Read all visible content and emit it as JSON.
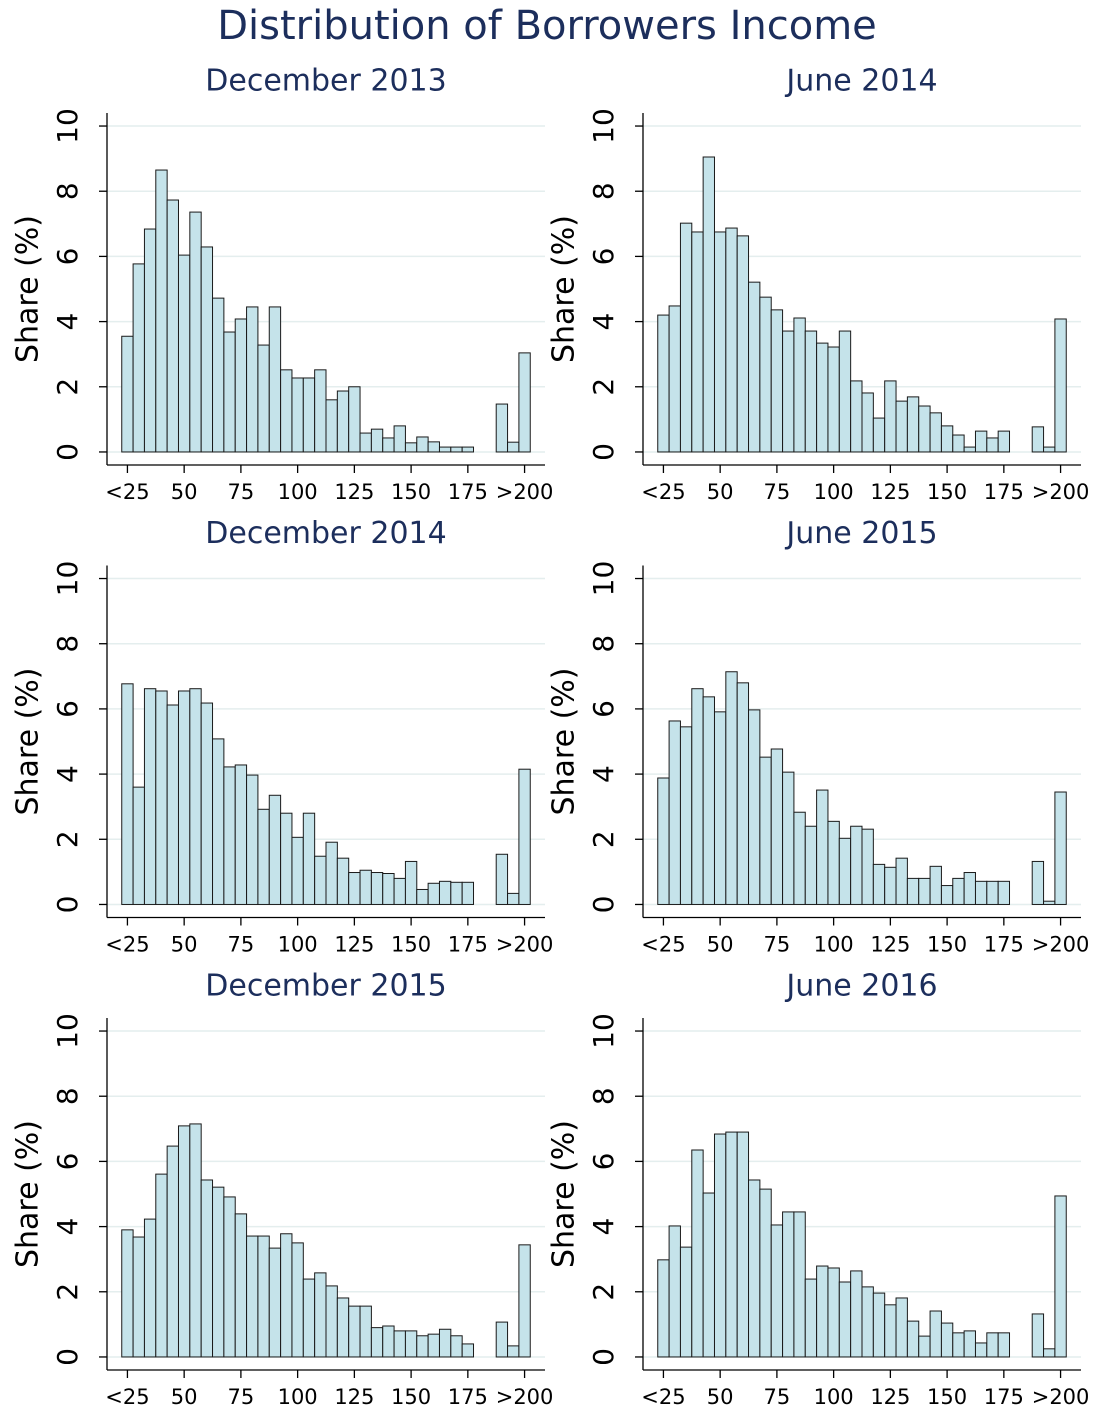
{
  "title": "Distribution of Borrowers Income",
  "chart_data": [
    {
      "type": "histogram",
      "title": "December 2013",
      "ylabel": "Share (%)",
      "color": "#c5e3ea",
      "grid": true,
      "bins": [
        22.5,
        27.5,
        32.5,
        37.5,
        42.5,
        47.5,
        52.5,
        57.5,
        62.5,
        67.5,
        72.5,
        77.5,
        82.5,
        87.5,
        92.5,
        97.5,
        102.5,
        107.5,
        112.5,
        117.5,
        122.5,
        127.5,
        132.5,
        137.5,
        142.5,
        147.5,
        152.5,
        157.5,
        162.5,
        167.5,
        172.5,
        177.5,
        182.5,
        187.5,
        192.5,
        197.5,
        202.5
      ],
      "values": [
        3.55,
        5.77,
        6.84,
        8.65,
        7.73,
        6.04,
        7.36,
        6.29,
        4.72,
        3.68,
        4.08,
        4.45,
        3.28,
        4.45,
        2.52,
        2.27,
        2.27,
        2.52,
        1.6,
        1.87,
        2.0,
        0.58,
        0.7,
        0.43,
        0.8,
        0.28,
        0.46,
        0.31,
        0.15,
        0.15,
        0.15,
        null,
        null,
        1.47,
        0.3,
        3.04
      ],
      "xlim": [
        16,
        209
      ],
      "xticks": [
        {
          "value": 25,
          "label": "<25"
        },
        50,
        75,
        100,
        125,
        150,
        175,
        {
          "value": 200,
          "label": ">200"
        }
      ],
      "ylim": [
        -0.4,
        10.4
      ],
      "yticks": [
        0,
        2,
        4,
        6,
        8,
        10
      ]
    },
    {
      "type": "histogram",
      "title": "June 2014",
      "ylabel": "Share (%)",
      "color": "#c5e3ea",
      "grid": true,
      "bins": [
        22.5,
        27.5,
        32.5,
        37.5,
        42.5,
        47.5,
        52.5,
        57.5,
        62.5,
        67.5,
        72.5,
        77.5,
        82.5,
        87.5,
        92.5,
        97.5,
        102.5,
        107.5,
        112.5,
        117.5,
        122.5,
        127.5,
        132.5,
        137.5,
        142.5,
        147.5,
        152.5,
        157.5,
        162.5,
        167.5,
        172.5,
        177.5,
        182.5,
        187.5,
        192.5,
        197.5,
        202.5
      ],
      "values": [
        4.2,
        4.48,
        7.02,
        6.75,
        9.05,
        6.75,
        6.87,
        6.63,
        5.21,
        4.75,
        4.36,
        3.71,
        4.11,
        3.71,
        3.34,
        3.22,
        3.71,
        2.18,
        1.81,
        1.04,
        2.18,
        1.56,
        1.69,
        1.41,
        1.2,
        0.8,
        0.52,
        0.15,
        0.64,
        0.43,
        0.64,
        null,
        null,
        0.77,
        0.15,
        4.08
      ],
      "xlim": [
        16,
        209
      ],
      "xticks": [
        {
          "value": 25,
          "label": "<25"
        },
        50,
        75,
        100,
        125,
        150,
        175,
        {
          "value": 200,
          "label": ">200"
        }
      ],
      "ylim": [
        -0.4,
        10.4
      ],
      "yticks": [
        0,
        2,
        4,
        6,
        8,
        10
      ]
    },
    {
      "type": "histogram",
      "title": "December 2014",
      "ylabel": "Share (%)",
      "color": "#c5e3ea",
      "grid": true,
      "bins": [
        22.5,
        27.5,
        32.5,
        37.5,
        42.5,
        47.5,
        52.5,
        57.5,
        62.5,
        67.5,
        72.5,
        77.5,
        82.5,
        87.5,
        92.5,
        97.5,
        102.5,
        107.5,
        112.5,
        117.5,
        122.5,
        127.5,
        132.5,
        137.5,
        142.5,
        147.5,
        152.5,
        157.5,
        162.5,
        167.5,
        172.5,
        177.5,
        182.5,
        187.5,
        192.5,
        197.5,
        202.5
      ],
      "values": [
        6.77,
        3.6,
        6.62,
        6.55,
        6.12,
        6.55,
        6.62,
        6.18,
        5.08,
        4.22,
        4.28,
        3.97,
        2.92,
        3.35,
        2.8,
        2.06,
        2.8,
        1.48,
        1.91,
        1.42,
        0.98,
        1.05,
        0.98,
        0.95,
        0.8,
        1.32,
        0.46,
        0.65,
        0.71,
        0.68,
        0.68,
        null,
        null,
        1.54,
        0.34,
        4.15
      ],
      "xlim": [
        16,
        209
      ],
      "xticks": [
        {
          "value": 25,
          "label": "<25"
        },
        50,
        75,
        100,
        125,
        150,
        175,
        {
          "value": 200,
          "label": ">200"
        }
      ],
      "ylim": [
        -0.4,
        10.4
      ],
      "yticks": [
        0,
        2,
        4,
        6,
        8,
        10
      ]
    },
    {
      "type": "histogram",
      "title": "June 2015",
      "ylabel": "Share (%)",
      "color": "#c5e3ea",
      "grid": true,
      "bins": [
        22.5,
        27.5,
        32.5,
        37.5,
        42.5,
        47.5,
        52.5,
        57.5,
        62.5,
        67.5,
        72.5,
        77.5,
        82.5,
        87.5,
        92.5,
        97.5,
        102.5,
        107.5,
        112.5,
        117.5,
        122.5,
        127.5,
        132.5,
        137.5,
        142.5,
        147.5,
        152.5,
        157.5,
        162.5,
        167.5,
        172.5,
        177.5,
        182.5,
        187.5,
        192.5,
        197.5,
        202.5
      ],
      "values": [
        3.88,
        5.63,
        5.45,
        6.62,
        6.37,
        5.91,
        7.14,
        6.8,
        5.97,
        4.52,
        4.77,
        4.06,
        2.83,
        2.4,
        3.51,
        2.55,
        2.03,
        2.4,
        2.31,
        1.23,
        1.14,
        1.42,
        0.8,
        0.8,
        1.17,
        0.58,
        0.8,
        0.98,
        0.71,
        0.71,
        0.71,
        null,
        null,
        1.32,
        0.1,
        3.45
      ],
      "xlim": [
        16,
        209
      ],
      "xticks": [
        {
          "value": 25,
          "label": "<25"
        },
        50,
        75,
        100,
        125,
        150,
        175,
        {
          "value": 200,
          "label": ">200"
        }
      ],
      "ylim": [
        -0.4,
        10.4
      ],
      "yticks": [
        0,
        2,
        4,
        6,
        8,
        10
      ]
    },
    {
      "type": "histogram",
      "title": "December 2015",
      "ylabel": "Share (%)",
      "color": "#c5e3ea",
      "grid": true,
      "bins": [
        22.5,
        27.5,
        32.5,
        37.5,
        42.5,
        47.5,
        52.5,
        57.5,
        62.5,
        67.5,
        72.5,
        77.5,
        82.5,
        87.5,
        92.5,
        97.5,
        102.5,
        107.5,
        112.5,
        117.5,
        122.5,
        127.5,
        132.5,
        137.5,
        142.5,
        147.5,
        152.5,
        157.5,
        162.5,
        167.5,
        172.5,
        177.5,
        182.5,
        187.5,
        192.5,
        197.5,
        202.5
      ],
      "values": [
        3.9,
        3.68,
        4.23,
        5.61,
        6.47,
        7.09,
        7.15,
        5.43,
        5.21,
        4.91,
        4.39,
        3.71,
        3.71,
        3.34,
        3.78,
        3.5,
        2.39,
        2.58,
        2.18,
        1.81,
        1.56,
        1.56,
        0.9,
        0.95,
        0.8,
        0.8,
        0.65,
        0.7,
        0.85,
        0.65,
        0.4,
        null,
        null,
        1.07,
        0.34,
        3.44
      ],
      "xlim": [
        16,
        209
      ],
      "xticks": [
        {
          "value": 25,
          "label": "<25"
        },
        50,
        75,
        100,
        125,
        150,
        175,
        {
          "value": 200,
          "label": ">200"
        }
      ],
      "ylim": [
        -0.4,
        10.4
      ],
      "yticks": [
        0,
        2,
        4,
        6,
        8,
        10
      ]
    },
    {
      "type": "histogram",
      "title": "June 2016",
      "ylabel": "Share (%)",
      "color": "#c5e3ea",
      "grid": true,
      "bins": [
        22.5,
        27.5,
        32.5,
        37.5,
        42.5,
        47.5,
        52.5,
        57.5,
        62.5,
        67.5,
        72.5,
        77.5,
        82.5,
        87.5,
        92.5,
        97.5,
        102.5,
        107.5,
        112.5,
        117.5,
        122.5,
        127.5,
        132.5,
        137.5,
        142.5,
        147.5,
        152.5,
        157.5,
        162.5,
        167.5,
        172.5,
        177.5,
        182.5,
        187.5,
        192.5,
        197.5,
        202.5
      ],
      "values": [
        2.98,
        4.02,
        3.37,
        6.35,
        5.03,
        6.84,
        6.9,
        6.9,
        5.43,
        5.15,
        4.05,
        4.45,
        4.45,
        2.39,
        2.79,
        2.73,
        2.3,
        2.64,
        2.15,
        1.96,
        1.6,
        1.81,
        1.1,
        0.64,
        1.41,
        1.04,
        0.74,
        0.8,
        0.43,
        0.74,
        0.74,
        null,
        null,
        1.32,
        0.25,
        4.94
      ],
      "xlim": [
        16,
        209
      ],
      "xticks": [
        {
          "value": 25,
          "label": "<25"
        },
        50,
        75,
        100,
        125,
        150,
        175,
        {
          "value": 200,
          "label": ">200"
        }
      ],
      "ylim": [
        -0.4,
        10.4
      ],
      "yticks": [
        0,
        2,
        4,
        6,
        8,
        10
      ]
    }
  ]
}
